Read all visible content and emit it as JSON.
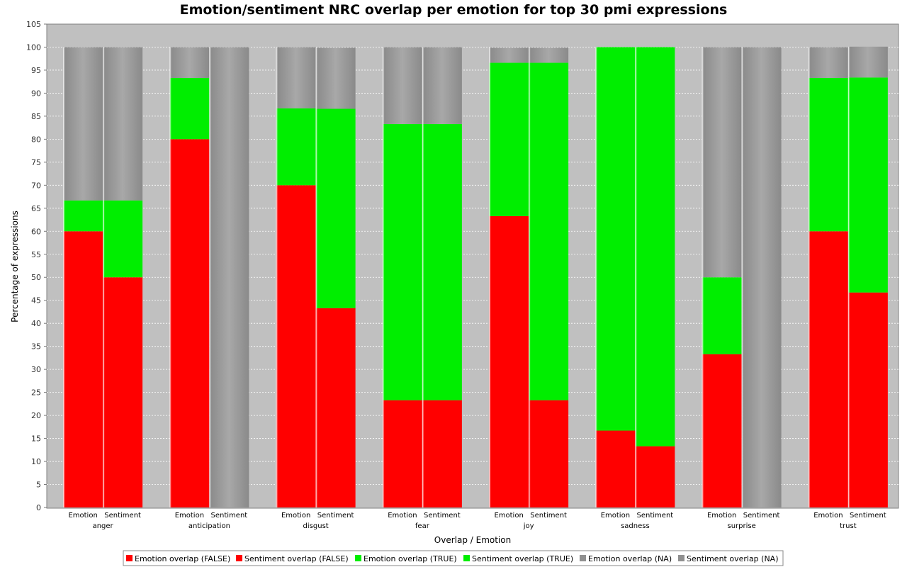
{
  "chart_data": {
    "type": "bar",
    "title": "Emotion/sentiment NRC overlap per emotion for top 30 pmi expressions",
    "xlabel": "Overlap / Emotion",
    "ylabel": "Percentage of expressions",
    "ylim": [
      0,
      105
    ],
    "yticks": [
      0,
      5,
      10,
      15,
      20,
      25,
      30,
      35,
      40,
      45,
      50,
      55,
      60,
      65,
      70,
      75,
      80,
      85,
      90,
      95,
      100,
      105
    ],
    "grid": true,
    "legend_position": "bottom",
    "categories": [
      "anger",
      "anticipation",
      "disgust",
      "fear",
      "joy",
      "sadness",
      "surprise",
      "trust"
    ],
    "subcategories": [
      "Emotion",
      "Sentiment"
    ],
    "stack_order": [
      "FALSE",
      "TRUE",
      "NA"
    ],
    "colors": {
      "FALSE": "#ff0000",
      "TRUE": "#00ee00",
      "NA": "#909090"
    },
    "series": [
      {
        "name": "Emotion overlap (FALSE)",
        "sub": "Emotion",
        "key": "FALSE",
        "values": [
          60,
          80,
          70,
          23.3,
          63.3,
          16.7,
          33.3,
          60
        ]
      },
      {
        "name": "Sentiment overlap (FALSE)",
        "sub": "Sentiment",
        "key": "FALSE",
        "values": [
          50,
          0,
          43.3,
          23.3,
          23.3,
          13.3,
          0,
          46.7
        ]
      },
      {
        "name": "Emotion overlap (TRUE)",
        "sub": "Emotion",
        "key": "TRUE",
        "values": [
          6.7,
          13.3,
          16.7,
          60,
          33.3,
          83.3,
          16.7,
          33.3
        ]
      },
      {
        "name": "Sentiment overlap (TRUE)",
        "sub": "Sentiment",
        "key": "TRUE",
        "values": [
          16.7,
          0,
          43.3,
          60,
          73.3,
          86.7,
          0,
          46.7
        ]
      },
      {
        "name": "Emotion overlap (NA)",
        "sub": "Emotion",
        "key": "NA",
        "values": [
          33.3,
          6.7,
          13.3,
          16.7,
          3.3,
          0,
          50,
          6.7
        ]
      },
      {
        "name": "Sentiment overlap (NA)",
        "sub": "Sentiment",
        "key": "NA",
        "values": [
          33.3,
          100,
          13.3,
          16.7,
          3.3,
          0,
          100,
          6.7
        ]
      }
    ]
  }
}
